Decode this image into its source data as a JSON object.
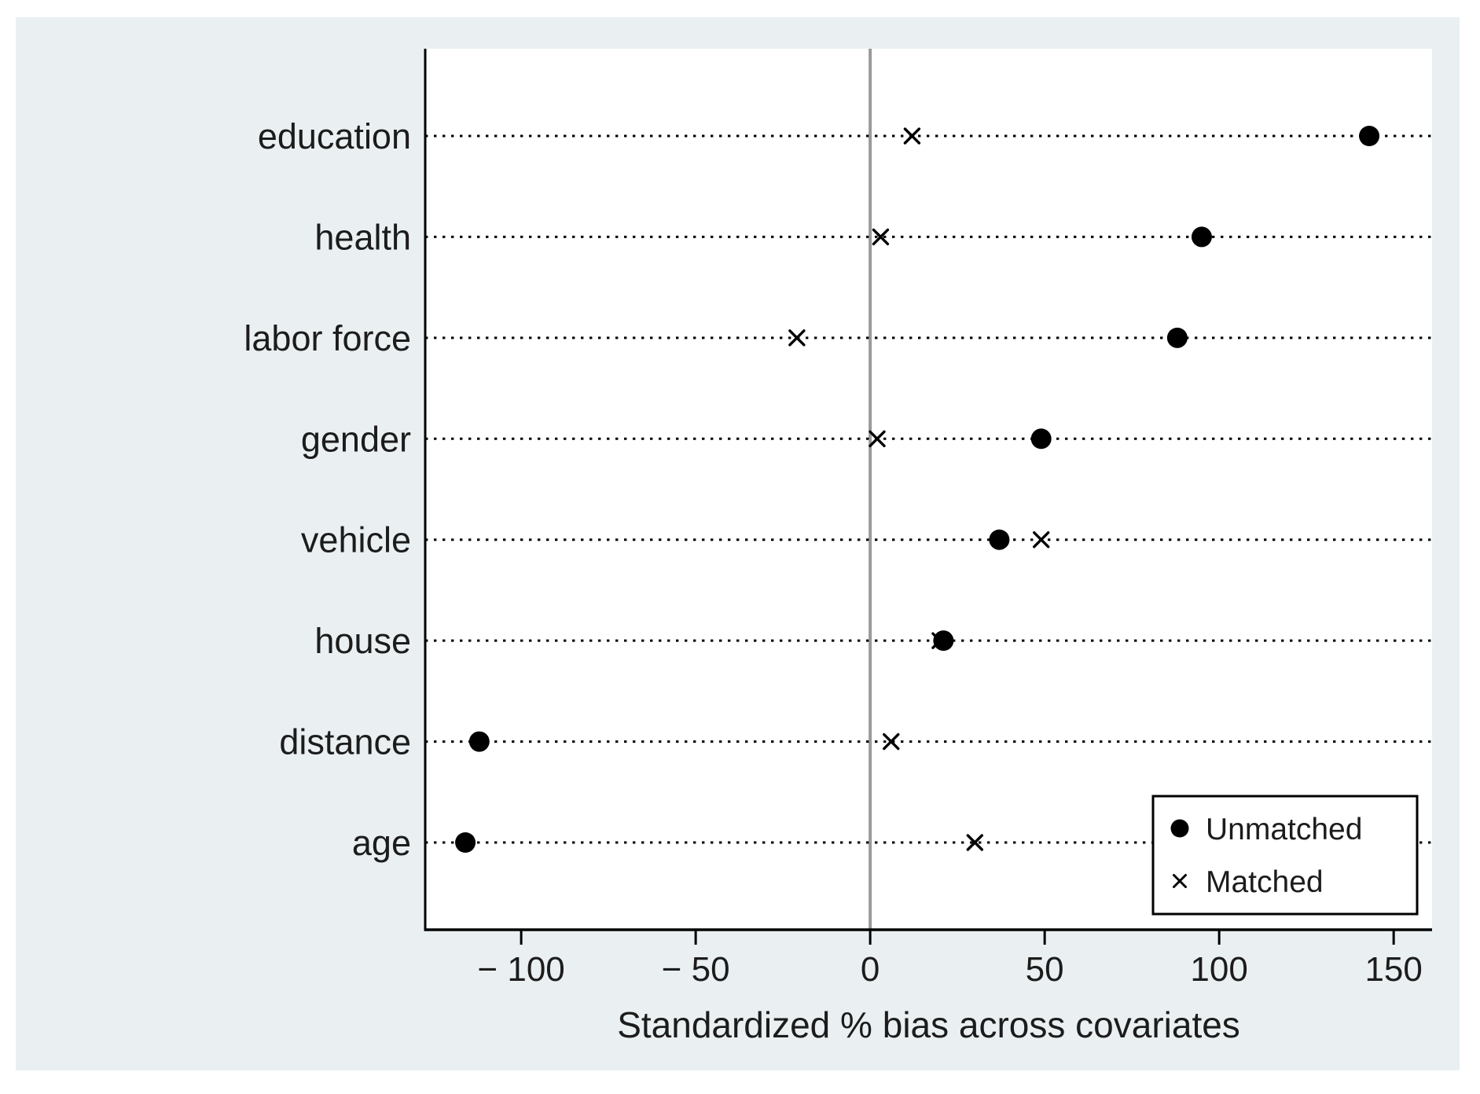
{
  "figure": {
    "kind": "stata-covariate-balance-dot-plot",
    "page_background": "#ffffff",
    "panel_background": "#eaf0f2",
    "plot_background": "#ffffff",
    "axis_color": "#000000",
    "text_color": "#1c1c1c",
    "marker_color": "#000000",
    "zero_line_color": "#9a9a9a",
    "gridline_style": "dotted",
    "legend": {
      "border_color": "#000000",
      "background": "#ffffff",
      "items": [
        {
          "label": "Unmatched",
          "marker": "circle"
        },
        {
          "label": "Matched",
          "marker": "x"
        }
      ]
    }
  },
  "chart_data": {
    "type": "scatter",
    "subtype": "horizontal dot plot (matching balance)",
    "title": "",
    "xlabel": "Standardized % bias across covariates",
    "ylabel": "",
    "categories": [
      "education",
      "health",
      "labor force",
      "gender",
      "vehicle",
      "house",
      "distance",
      "age"
    ],
    "series": [
      {
        "name": "Unmatched",
        "marker": "circle",
        "values": [
          143,
          95,
          88,
          49,
          37,
          21,
          -112,
          -116
        ]
      },
      {
        "name": "Matched",
        "marker": "x",
        "values": [
          12,
          3,
          -21,
          2,
          49,
          20,
          6,
          30
        ]
      }
    ],
    "x_ticks": [
      -100,
      -50,
      0,
      50,
      100,
      150
    ],
    "x_tick_labels": [
      "− 100",
      "− 50",
      "0",
      "50",
      "100",
      "150"
    ],
    "xlim": [
      -127.5,
      161
    ],
    "zero_reference_line": true,
    "grid": "dotted horizontal lines per category",
    "legend_position": "bottom-right inside plot"
  }
}
